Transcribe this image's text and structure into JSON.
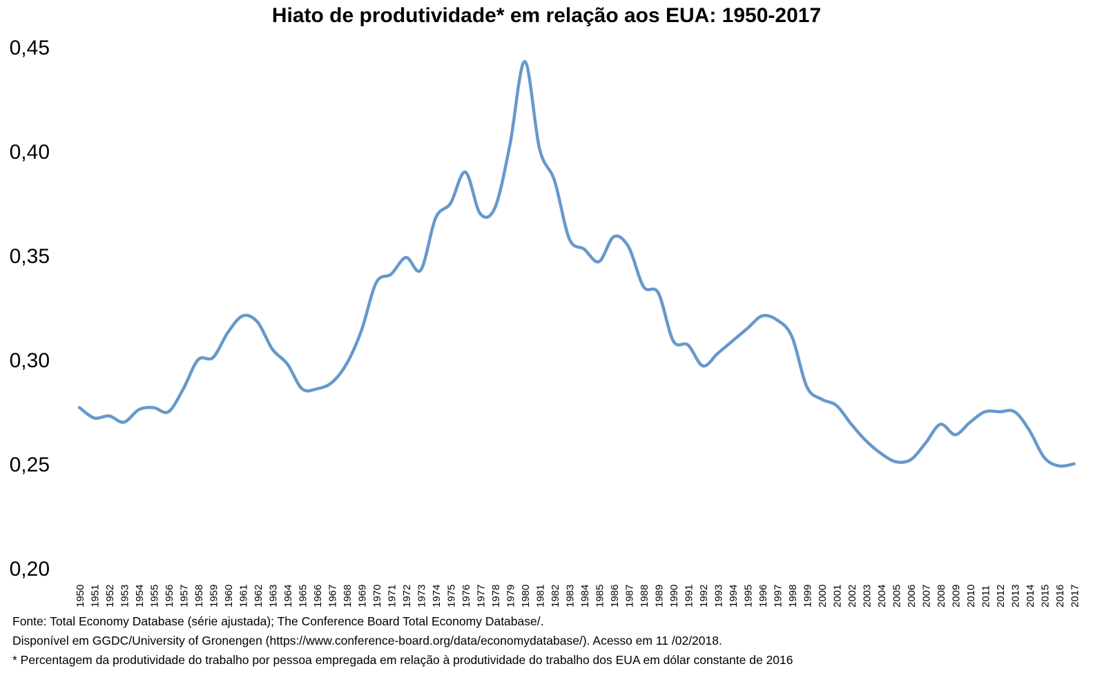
{
  "chart_data": {
    "type": "line",
    "title": "Hiato de produtividade* em relação aos EUA: 1950-2017",
    "xlabel": "",
    "ylabel": "",
    "ylim": [
      0.2,
      0.45
    ],
    "yticks": [
      0.2,
      0.25,
      0.3,
      0.35,
      0.4,
      0.45
    ],
    "ytick_labels": [
      "0,20",
      "0,25",
      "0,30",
      "0,35",
      "0,40",
      "0,45"
    ],
    "grid": false,
    "legend": "none",
    "line_color": "#6699CC",
    "x": [
      1950,
      1951,
      1952,
      1953,
      1954,
      1955,
      1956,
      1957,
      1958,
      1959,
      1960,
      1961,
      1962,
      1963,
      1964,
      1965,
      1966,
      1967,
      1968,
      1969,
      1970,
      1971,
      1972,
      1973,
      1974,
      1975,
      1976,
      1977,
      1978,
      1979,
      1980,
      1981,
      1982,
      1983,
      1984,
      1985,
      1986,
      1987,
      1988,
      1989,
      1990,
      1991,
      1992,
      1993,
      1994,
      1995,
      1996,
      1997,
      1998,
      1999,
      2000,
      2001,
      2002,
      2003,
      2004,
      2005,
      2006,
      2007,
      2008,
      2009,
      2010,
      2011,
      2012,
      2013,
      2014,
      2015,
      2016,
      2017
    ],
    "series": [
      {
        "values": [
          0.277,
          0.272,
          0.273,
          0.27,
          0.276,
          0.277,
          0.275,
          0.286,
          0.3,
          0.301,
          0.313,
          0.321,
          0.318,
          0.305,
          0.298,
          0.286,
          0.286,
          0.289,
          0.298,
          0.314,
          0.337,
          0.341,
          0.349,
          0.343,
          0.368,
          0.375,
          0.39,
          0.37,
          0.373,
          0.403,
          0.443,
          0.401,
          0.386,
          0.358,
          0.353,
          0.347,
          0.359,
          0.354,
          0.335,
          0.332,
          0.309,
          0.307,
          0.297,
          0.303,
          0.309,
          0.315,
          0.321,
          0.319,
          0.311,
          0.287,
          0.281,
          0.278,
          0.269,
          0.261,
          0.255,
          0.251,
          0.252,
          0.26,
          0.269,
          0.264,
          0.27,
          0.275,
          0.275,
          0.275,
          0.266,
          0.253,
          0.249,
          0.25
        ]
      }
    ]
  },
  "footnotes": {
    "source": "Fonte: Total Economy Database (série ajustada); The Conference Board Total Economy Database/.",
    "availability": "Disponível em  GGDC/University of Gronengen (https://www.conference-board.org/data/economydatabase/). Acesso em 11 /02/2018.",
    "definition": "* Percentagem da produtividade do trabalho por pessoa empregada em relação à produtividade do trabalho dos EUA em dólar constante de 2016"
  }
}
